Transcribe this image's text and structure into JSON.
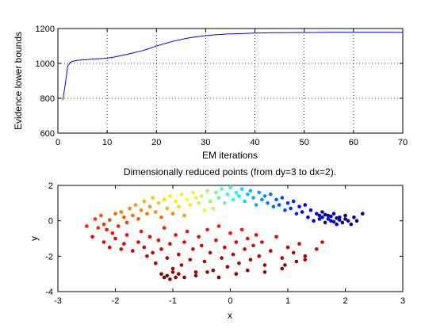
{
  "chart_data": [
    {
      "type": "line",
      "title": "",
      "xlabel": "EM iterations",
      "ylabel": "Evidence lower bounds",
      "xlim": [
        0,
        70
      ],
      "ylim": [
        600,
        1200
      ],
      "xticks": [
        0,
        10,
        20,
        30,
        40,
        50,
        60,
        70
      ],
      "yticks": [
        600,
        800,
        1000,
        1200
      ],
      "grid": "dotted",
      "line_color": "#0000ff",
      "series": [
        {
          "x": [
            1,
            1.5,
            2,
            2.5,
            3,
            4,
            5,
            6,
            7,
            8,
            9,
            10,
            11,
            12,
            13,
            14,
            15,
            16,
            17,
            18,
            19,
            20,
            21,
            22,
            23,
            24,
            25,
            26,
            27,
            28,
            29,
            30,
            31,
            32,
            33,
            34,
            35,
            36,
            37,
            38,
            39,
            40,
            42,
            44,
            46,
            48,
            50,
            55,
            60,
            65,
            70
          ],
          "values": [
            790,
            880,
            985,
            1005,
            1012,
            1018,
            1020,
            1022,
            1025,
            1027,
            1028,
            1030,
            1034,
            1040,
            1046,
            1052,
            1058,
            1065,
            1072,
            1080,
            1090,
            1100,
            1108,
            1116,
            1124,
            1131,
            1137,
            1143,
            1148,
            1152,
            1156,
            1159,
            1162,
            1164,
            1166,
            1168,
            1169,
            1170,
            1171,
            1172,
            1173,
            1174,
            1175,
            1176,
            1176,
            1177,
            1177,
            1178,
            1178,
            1178,
            1178
          ]
        }
      ]
    },
    {
      "type": "scatter",
      "title": "Dimensionally reduced points (from dy=3 to dx=2).",
      "xlabel": "x",
      "ylabel": "y",
      "xlim": [
        -3,
        3
      ],
      "ylim": [
        -4,
        2
      ],
      "xticks": [
        -3,
        -2,
        -1,
        0,
        1,
        2,
        3
      ],
      "yticks": [
        -4,
        -2,
        0,
        2
      ],
      "grid": "off",
      "colormap": "jet",
      "points": [
        [
          -2.5,
          -0.3,
          0.84
        ],
        [
          -2.35,
          0.1,
          0.82
        ],
        [
          -2.3,
          -0.4,
          0.84
        ],
        [
          -2.25,
          0.3,
          0.8
        ],
        [
          -2.2,
          -0.2,
          0.83
        ],
        [
          -2.15,
          -0.5,
          0.86
        ],
        [
          -2.1,
          0.05,
          0.81
        ],
        [
          -2.05,
          -0.7,
          0.87
        ],
        [
          -2.0,
          0.4,
          0.78
        ],
        [
          -1.95,
          -0.3,
          0.84
        ],
        [
          -1.9,
          0.5,
          0.76
        ],
        [
          -1.85,
          0.2,
          0.79
        ],
        [
          -1.8,
          -0.1,
          0.82
        ],
        [
          -1.75,
          0.7,
          0.74
        ],
        [
          -1.7,
          0.3,
          0.77
        ],
        [
          -1.65,
          0.9,
          0.72
        ],
        [
          -1.6,
          0.1,
          0.8
        ],
        [
          -1.55,
          0.6,
          0.74
        ],
        [
          -1.5,
          1.1,
          0.7
        ],
        [
          -1.45,
          0.4,
          0.76
        ],
        [
          -1.4,
          0.8,
          0.72
        ],
        [
          -1.35,
          1.3,
          0.68
        ],
        [
          -1.3,
          0.5,
          0.74
        ],
        [
          -1.25,
          1.0,
          0.68
        ],
        [
          -1.2,
          0.2,
          0.77
        ],
        [
          -1.15,
          1.2,
          0.66
        ],
        [
          -1.1,
          0.7,
          0.7
        ],
        [
          -1.05,
          1.4,
          0.64
        ],
        [
          -1.0,
          0.4,
          0.74
        ],
        [
          -0.95,
          1.1,
          0.64
        ],
        [
          -0.9,
          0.8,
          0.66
        ],
        [
          -0.85,
          1.5,
          0.6
        ],
        [
          -0.8,
          0.3,
          0.72
        ],
        [
          -0.75,
          1.2,
          0.62
        ],
        [
          -0.7,
          0.9,
          0.64
        ],
        [
          -0.65,
          1.6,
          0.58
        ],
        [
          -0.6,
          1.3,
          0.6
        ],
        [
          -2.4,
          -0.9,
          0.88
        ],
        [
          -2.2,
          -1.2,
          0.9
        ],
        [
          -2.1,
          -1.5,
          0.9
        ],
        [
          -2.0,
          -1.0,
          0.88
        ],
        [
          -1.9,
          -1.6,
          0.91
        ],
        [
          -1.85,
          -1.3,
          0.9
        ],
        [
          -1.8,
          -0.8,
          0.87
        ],
        [
          -1.7,
          -1.7,
          0.92
        ],
        [
          -1.6,
          -1.2,
          0.9
        ],
        [
          -1.55,
          -0.6,
          0.86
        ],
        [
          -1.5,
          -1.5,
          0.91
        ],
        [
          -1.45,
          -2.0,
          0.93
        ],
        [
          -1.4,
          -0.9,
          0.88
        ],
        [
          -1.35,
          -1.8,
          0.92
        ],
        [
          -1.3,
          -2.4,
          0.95
        ],
        [
          -1.25,
          -1.1,
          0.89
        ],
        [
          -1.2,
          -1.6,
          0.92
        ],
        [
          -1.15,
          -0.4,
          0.85
        ],
        [
          -1.1,
          -2.1,
          0.94
        ],
        [
          -1.05,
          -1.3,
          0.9
        ],
        [
          -1.0,
          -2.7,
          0.96
        ],
        [
          -0.95,
          -0.8,
          0.87
        ],
        [
          -0.9,
          -1.9,
          0.93
        ],
        [
          -0.85,
          -2.5,
          0.95
        ],
        [
          -0.8,
          -1.2,
          0.9
        ],
        [
          -0.75,
          -0.6,
          0.86
        ],
        [
          -0.7,
          -2.2,
          0.94
        ],
        [
          -0.65,
          -1.6,
          0.92
        ],
        [
          -0.6,
          -2.9,
          0.97
        ],
        [
          -0.55,
          -0.9,
          0.88
        ],
        [
          -0.5,
          -1.4,
          0.91
        ],
        [
          -0.45,
          -2.3,
          0.95
        ],
        [
          -0.4,
          -0.5,
          0.86
        ],
        [
          -0.35,
          -1.8,
          0.93
        ],
        [
          -0.3,
          -2.8,
          0.97
        ],
        [
          -0.25,
          -1.1,
          0.89
        ],
        [
          -0.2,
          -0.3,
          0.85
        ],
        [
          -0.15,
          -2.1,
          0.94
        ],
        [
          -0.1,
          -1.5,
          0.91
        ],
        [
          -0.05,
          -2.6,
          0.96
        ],
        [
          0.0,
          -0.7,
          0.87
        ],
        [
          0.05,
          -1.9,
          0.93
        ],
        [
          0.1,
          -1.2,
          0.9
        ],
        [
          0.15,
          -2.4,
          0.95
        ],
        [
          0.2,
          -0.5,
          0.86
        ],
        [
          0.25,
          -1.6,
          0.92
        ],
        [
          0.3,
          -1.0,
          0.89
        ],
        [
          0.35,
          -2.2,
          0.94
        ],
        [
          0.4,
          -1.4,
          0.91
        ],
        [
          0.45,
          -0.8,
          0.88
        ],
        [
          0.5,
          -2.0,
          0.94
        ],
        [
          0.55,
          -1.2,
          0.9
        ],
        [
          0.6,
          -2.5,
          0.96
        ],
        [
          0.7,
          -1.7,
          0.93
        ],
        [
          0.8,
          -0.9,
          0.89
        ],
        [
          0.9,
          -2.1,
          0.95
        ],
        [
          1.0,
          -1.5,
          0.92
        ],
        [
          1.1,
          -1.8,
          0.94
        ],
        [
          1.2,
          -1.3,
          0.91
        ],
        [
          1.3,
          -2.2,
          0.95
        ],
        [
          1.5,
          -1.6,
          0.93
        ],
        [
          1.6,
          -1.2,
          0.92
        ],
        [
          -1.2,
          -3.0,
          0.98
        ],
        [
          -1.15,
          -3.2,
          0.99
        ],
        [
          -1.1,
          -3.1,
          0.98
        ],
        [
          -1.05,
          -3.3,
          0.99
        ],
        [
          -1.0,
          -2.9,
          0.98
        ],
        [
          -0.95,
          -3.2,
          0.99
        ],
        [
          -0.9,
          -3.0,
          0.98
        ],
        [
          -0.8,
          -3.2,
          0.99
        ],
        [
          -0.6,
          -3.1,
          0.99
        ],
        [
          -0.4,
          -2.9,
          0.98
        ],
        [
          -0.2,
          -3.2,
          0.99
        ],
        [
          0.1,
          -3.0,
          0.98
        ],
        [
          0.3,
          -2.8,
          0.98
        ],
        [
          0.6,
          -2.9,
          0.98
        ],
        [
          0.9,
          -2.7,
          0.98
        ],
        [
          1.15,
          -2.3,
          0.97
        ],
        [
          1.3,
          -2.0,
          0.96
        ],
        [
          0.95,
          -2.5,
          0.98
        ],
        [
          -0.55,
          1.0,
          0.56
        ],
        [
          -0.5,
          1.4,
          0.55
        ],
        [
          -0.45,
          0.6,
          0.6
        ],
        [
          -0.4,
          1.7,
          0.52
        ],
        [
          -0.35,
          1.1,
          0.52
        ],
        [
          -0.3,
          0.7,
          0.56
        ],
        [
          -0.25,
          1.6,
          0.48
        ],
        [
          -0.2,
          1.3,
          0.46
        ],
        [
          -0.15,
          1.8,
          0.44
        ],
        [
          -0.1,
          1.0,
          0.46
        ],
        [
          -0.05,
          1.5,
          0.42
        ],
        [
          0.0,
          1.9,
          0.4
        ],
        [
          0.05,
          1.2,
          0.4
        ],
        [
          0.1,
          1.6,
          0.38
        ],
        [
          0.15,
          1.4,
          0.36
        ],
        [
          0.2,
          1.8,
          0.35
        ],
        [
          0.25,
          1.1,
          0.34
        ],
        [
          0.3,
          1.5,
          0.32
        ],
        [
          0.35,
          1.7,
          0.31
        ],
        [
          0.4,
          1.3,
          0.3
        ],
        [
          0.45,
          0.9,
          0.3
        ],
        [
          0.5,
          1.6,
          0.28
        ],
        [
          0.55,
          1.2,
          0.27
        ],
        [
          0.6,
          1.4,
          0.26
        ],
        [
          0.65,
          1.0,
          0.25
        ],
        [
          0.7,
          1.5,
          0.24
        ],
        [
          0.75,
          0.8,
          0.24
        ],
        [
          0.8,
          1.2,
          0.22
        ],
        [
          0.85,
          0.9,
          0.21
        ],
        [
          0.9,
          1.3,
          0.2
        ],
        [
          0.95,
          0.6,
          0.2
        ],
        [
          1.0,
          1.0,
          0.18
        ],
        [
          1.05,
          0.7,
          0.17
        ],
        [
          1.1,
          1.1,
          0.16
        ],
        [
          1.15,
          0.4,
          0.16
        ],
        [
          1.2,
          0.8,
          0.14
        ],
        [
          1.25,
          0.5,
          0.13
        ],
        [
          1.3,
          0.9,
          0.12
        ],
        [
          1.35,
          0.2,
          0.12
        ],
        [
          1.4,
          0.6,
          0.11
        ],
        [
          1.45,
          0.0,
          0.1
        ],
        [
          1.5,
          0.4,
          0.09
        ],
        [
          1.55,
          0.1,
          0.08
        ],
        [
          1.6,
          0.5,
          0.08
        ],
        [
          1.65,
          -0.1,
          0.07
        ],
        [
          1.7,
          0.3,
          0.06
        ],
        [
          1.75,
          0.0,
          0.06
        ],
        [
          1.8,
          0.4,
          0.05
        ],
        [
          1.85,
          -0.2,
          0.05
        ],
        [
          1.9,
          0.2,
          0.04
        ],
        [
          1.95,
          -0.1,
          0.04
        ],
        [
          2.0,
          0.3,
          0.03
        ],
        [
          2.05,
          0.0,
          0.03
        ],
        [
          2.1,
          -0.2,
          0.02
        ],
        [
          2.15,
          0.2,
          0.02
        ],
        [
          2.2,
          0.0,
          0.01
        ],
        [
          2.3,
          0.4,
          0.01
        ],
        [
          1.7,
          0.1,
          0.06
        ],
        [
          1.8,
          -0.05,
          0.05
        ],
        [
          1.6,
          0.2,
          0.07
        ],
        [
          1.9,
          0.05,
          0.04
        ],
        [
          1.75,
          0.25,
          0.05
        ],
        [
          1.65,
          0.35,
          0.07
        ],
        [
          1.85,
          0.15,
          0.04
        ],
        [
          1.55,
          0.3,
          0.08
        ],
        [
          2.0,
          0.1,
          0.03
        ]
      ]
    }
  ]
}
